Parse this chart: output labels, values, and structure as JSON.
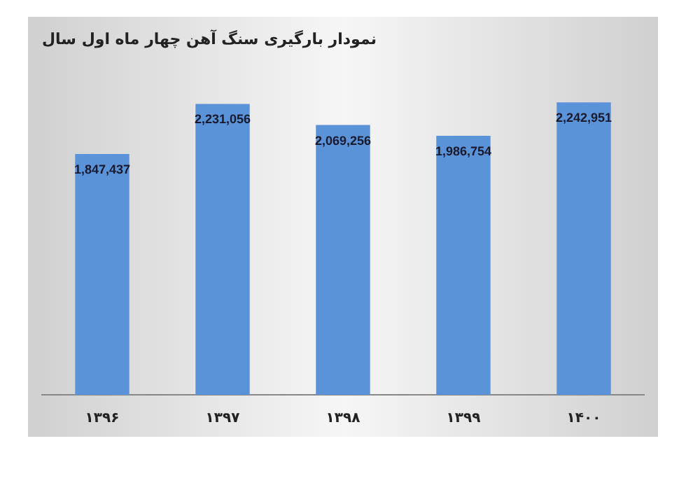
{
  "chart_data": {
    "type": "bar",
    "title": "نمودار بارگیری سنگ آهن چهار ماه اول سال",
    "categories": [
      "۱۳۹۶",
      "۱۳۹۷",
      "۱۳۹۸",
      "۱۳۹۹",
      "۱۴۰۰"
    ],
    "values": [
      1847437,
      2231056,
      2069256,
      1986754,
      2242951
    ],
    "value_labels": [
      "1,847,437",
      "2,231,056",
      "2,069,256",
      "1,986,754",
      "2,242,951"
    ],
    "color": "#5b93d8",
    "legend": false
  }
}
